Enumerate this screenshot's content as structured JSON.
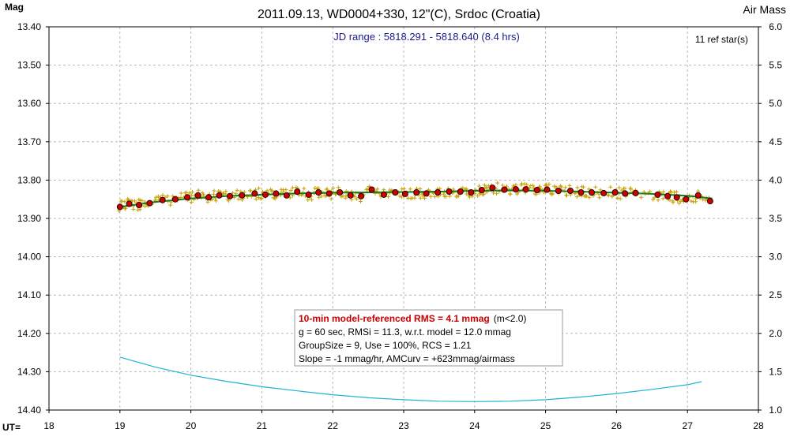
{
  "colors": {
    "background": "#ffffff",
    "raw_points": "#c8a000",
    "binned_fill": "#cc0000",
    "binned_edge": "#000000",
    "model_line": "#1e7a1e",
    "airmass_line": "#1fb3d3",
    "jd_text": "#1a1a8c",
    "rms_text": "#cc0000",
    "grid": "#b8b8b8"
  },
  "chart_data": {
    "type": "scatter",
    "title": "2011.09.13, WD0004+330, 12\"(C), Srdoc (Croatia)",
    "ylabel_left": "Mag",
    "ylabel_right": "Air Mass",
    "xlabel": "UT=",
    "x_range": [
      18,
      28
    ],
    "y_left_range": [
      13.4,
      14.4
    ],
    "y_left_inverted": true,
    "y_right_range": [
      1.0,
      6.0
    ],
    "x_ticks": [
      "18",
      "19",
      "20",
      "21",
      "22",
      "23",
      "24",
      "25",
      "26",
      "27",
      "28"
    ],
    "y_left_ticks": [
      "13.40",
      "13.50",
      "13.60",
      "13.70",
      "13.80",
      "13.90",
      "14.00",
      "14.10",
      "14.20",
      "14.30",
      "14.40"
    ],
    "y_right_ticks": [
      "6.0",
      "5.5",
      "5.0",
      "4.5",
      "4.0",
      "3.5",
      "3.0",
      "2.5",
      "2.0",
      "1.5",
      "1.0"
    ],
    "grid": true,
    "jd_range_text": "JD range : 5818.291 - 5818.640 (8.4 hrs)",
    "ref_stars_text": "11 ref star(s)",
    "stats_box": {
      "rms_bold": "10-min model-referenced RMS = 4.1 mmag",
      "rms_suffix": "(m<2.0)",
      "line2": "g = 60 sec, RMSi = 11.3, w.r.t. model = 12.0 mmag",
      "line3": "GroupSize = 9, Use = 100%, RCS = 1.21",
      "line4": "Slope = -1 mmag/hr, AMCurv = +623mmag/airmass"
    },
    "binned_points": [
      [
        19.0,
        13.87
      ],
      [
        19.13,
        13.862
      ],
      [
        19.27,
        13.865
      ],
      [
        19.42,
        13.86
      ],
      [
        19.6,
        13.852
      ],
      [
        19.78,
        13.85
      ],
      [
        19.95,
        13.845
      ],
      [
        20.1,
        13.84
      ],
      [
        20.25,
        13.845
      ],
      [
        20.4,
        13.84
      ],
      [
        20.55,
        13.842
      ],
      [
        20.72,
        13.84
      ],
      [
        20.9,
        13.835
      ],
      [
        21.05,
        13.838
      ],
      [
        21.2,
        13.835
      ],
      [
        21.35,
        13.84
      ],
      [
        21.5,
        13.83
      ],
      [
        21.66,
        13.838
      ],
      [
        21.8,
        13.832
      ],
      [
        21.95,
        13.835
      ],
      [
        22.1,
        13.832
      ],
      [
        22.25,
        13.84
      ],
      [
        22.4,
        13.842
      ],
      [
        22.55,
        13.825
      ],
      [
        22.72,
        13.838
      ],
      [
        22.88,
        13.832
      ],
      [
        23.02,
        13.836
      ],
      [
        23.18,
        13.832
      ],
      [
        23.32,
        13.835
      ],
      [
        23.48,
        13.832
      ],
      [
        23.64,
        13.83
      ],
      [
        23.8,
        13.83
      ],
      [
        23.95,
        13.832
      ],
      [
        24.1,
        13.826
      ],
      [
        24.25,
        13.82
      ],
      [
        24.42,
        13.825
      ],
      [
        24.58,
        13.824
      ],
      [
        24.72,
        13.824
      ],
      [
        24.88,
        13.826
      ],
      [
        25.02,
        13.825
      ],
      [
        25.18,
        13.828
      ],
      [
        25.35,
        13.828
      ],
      [
        25.5,
        13.832
      ],
      [
        25.65,
        13.832
      ],
      [
        25.82,
        13.834
      ],
      [
        25.98,
        13.832
      ],
      [
        26.12,
        13.835
      ],
      [
        26.27,
        13.834
      ],
      [
        26.58,
        13.838
      ],
      [
        26.72,
        13.842
      ],
      [
        26.85,
        13.845
      ],
      [
        26.98,
        13.85
      ],
      [
        27.15,
        13.84
      ],
      [
        27.32,
        13.855
      ]
    ],
    "model_curve": [
      [
        19.0,
        13.87
      ],
      [
        19.5,
        13.857
      ],
      [
        20.0,
        13.848
      ],
      [
        20.5,
        13.842
      ],
      [
        21.0,
        13.838
      ],
      [
        21.5,
        13.835
      ],
      [
        22.0,
        13.833
      ],
      [
        22.5,
        13.832
      ],
      [
        23.0,
        13.831
      ],
      [
        23.5,
        13.83
      ],
      [
        24.0,
        13.828
      ],
      [
        24.5,
        13.827
      ],
      [
        25.0,
        13.828
      ],
      [
        25.5,
        13.83
      ],
      [
        26.0,
        13.833
      ],
      [
        26.5,
        13.836
      ],
      [
        27.0,
        13.841
      ],
      [
        27.35,
        13.848
      ]
    ],
    "airmass_curve": [
      [
        19.0,
        1.69
      ],
      [
        19.5,
        1.56
      ],
      [
        20.0,
        1.455
      ],
      [
        20.5,
        1.375
      ],
      [
        21.0,
        1.305
      ],
      [
        21.5,
        1.25
      ],
      [
        22.0,
        1.2
      ],
      [
        22.5,
        1.16
      ],
      [
        23.0,
        1.135
      ],
      [
        23.5,
        1.115
      ],
      [
        24.0,
        1.11
      ],
      [
        24.5,
        1.115
      ],
      [
        25.0,
        1.135
      ],
      [
        25.5,
        1.17
      ],
      [
        26.0,
        1.215
      ],
      [
        26.5,
        1.27
      ],
      [
        27.0,
        1.33
      ],
      [
        27.2,
        1.37
      ]
    ]
  }
}
